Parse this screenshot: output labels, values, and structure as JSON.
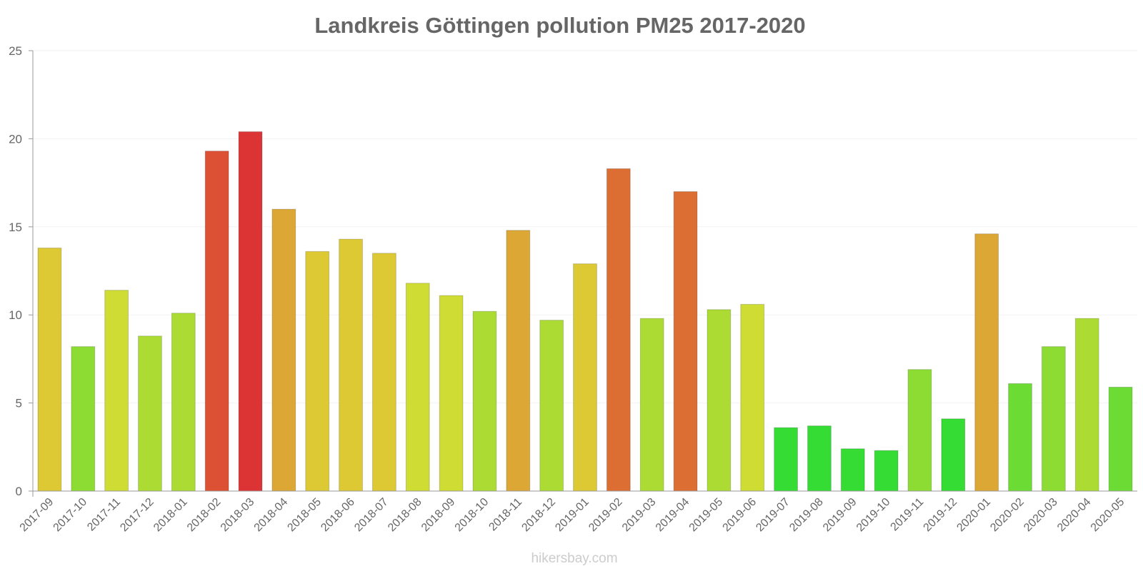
{
  "chart_data": {
    "type": "bar",
    "title": "Landkreis Göttingen pollution PM25 2017-2020",
    "xlabel": "",
    "ylabel": "",
    "ylim": [
      0,
      25
    ],
    "yticks": [
      "0",
      "5",
      "10",
      "15",
      "20",
      "25"
    ],
    "grid": true,
    "categories": [
      "2017-09",
      "2017-10",
      "2017-11",
      "2017-12",
      "2018-01",
      "2018-02",
      "2018-03",
      "2018-04",
      "2018-05",
      "2018-06",
      "2018-07",
      "2018-08",
      "2018-09",
      "2018-10",
      "2018-11",
      "2018-12",
      "2019-01",
      "2019-02",
      "2019-03",
      "2019-04",
      "2019-05",
      "2019-06",
      "2019-07",
      "2019-08",
      "2019-09",
      "2019-10",
      "2019-11",
      "2019-12",
      "2020-01",
      "2020-02",
      "2020-03",
      "2020-04",
      "2020-05"
    ],
    "values": [
      13.8,
      8.2,
      11.4,
      8.8,
      10.1,
      19.3,
      20.4,
      16.0,
      13.6,
      14.3,
      13.5,
      11.8,
      11.1,
      10.2,
      14.8,
      9.7,
      12.9,
      18.3,
      9.8,
      17.0,
      10.3,
      10.6,
      3.6,
      3.7,
      2.4,
      2.3,
      6.9,
      4.1,
      14.6,
      6.1,
      8.2,
      9.8,
      5.9
    ],
    "colors": [
      "#dcc934",
      "#8ddc34",
      "#cedc34",
      "#acdc34",
      "#acdc34",
      "#dc5034",
      "#dc3434",
      "#dca734",
      "#dcc934",
      "#dcc934",
      "#dcc934",
      "#cedc34",
      "#cedc34",
      "#acdc34",
      "#dca734",
      "#acdc34",
      "#dcc934",
      "#dc6e34",
      "#acdc34",
      "#dc6e34",
      "#acdc34",
      "#cedc34",
      "#34dc34",
      "#34dc34",
      "#34dc34",
      "#34dc34",
      "#8ddc34",
      "#34dc34",
      "#dca734",
      "#6cdc34",
      "#8ddc34",
      "#acdc34",
      "#6cdc34"
    ]
  },
  "watermark": "hikersbay.com"
}
